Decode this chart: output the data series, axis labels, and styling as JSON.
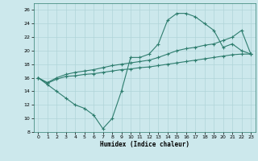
{
  "xlabel": "Humidex (Indice chaleur)",
  "line_color": "#2e7d6e",
  "bg_color": "#cce8ec",
  "grid_color": "#b0d4d8",
  "xlim": [
    -0.5,
    23.5
  ],
  "ylim": [
    8,
    27
  ],
  "xticks": [
    0,
    1,
    2,
    3,
    4,
    5,
    6,
    7,
    8,
    9,
    10,
    11,
    12,
    13,
    14,
    15,
    16,
    17,
    18,
    19,
    20,
    21,
    22,
    23
  ],
  "yticks": [
    8,
    10,
    12,
    14,
    16,
    18,
    20,
    22,
    24,
    26
  ],
  "series1_x": [
    0,
    1,
    2,
    3,
    4,
    5,
    6,
    7,
    8,
    9,
    10,
    11,
    12,
    13,
    14,
    15,
    16,
    17,
    18,
    19,
    20,
    21,
    22,
    23
  ],
  "series1_y": [
    16,
    15,
    14,
    13,
    12,
    11.5,
    10.5,
    8.5,
    10,
    14,
    19,
    19,
    19.5,
    21,
    24.5,
    25.5,
    25.5,
    25,
    24,
    23,
    20.5,
    21,
    20,
    19.5
  ],
  "series2_x": [
    0,
    1,
    2,
    3,
    4,
    5,
    6,
    7,
    8,
    9,
    10,
    11,
    12,
    13,
    14,
    15,
    16,
    17,
    18,
    19,
    20,
    21,
    22,
    23
  ],
  "series2_y": [
    16,
    15.2,
    15.8,
    16.2,
    16.3,
    16.5,
    16.6,
    16.8,
    17.0,
    17.2,
    17.3,
    17.5,
    17.6,
    17.8,
    18.0,
    18.2,
    18.4,
    18.6,
    18.8,
    19.0,
    19.2,
    19.4,
    19.5,
    19.5
  ],
  "series3_x": [
    0,
    1,
    2,
    3,
    4,
    5,
    6,
    7,
    8,
    9,
    10,
    11,
    12,
    13,
    14,
    15,
    16,
    17,
    18,
    19,
    20,
    21,
    22,
    23
  ],
  "series3_y": [
    16,
    15.3,
    16.0,
    16.5,
    16.8,
    17.0,
    17.2,
    17.5,
    17.8,
    18.0,
    18.2,
    18.4,
    18.6,
    19.0,
    19.5,
    20.0,
    20.3,
    20.5,
    20.8,
    21.0,
    21.5,
    22.0,
    23.0,
    19.5
  ]
}
